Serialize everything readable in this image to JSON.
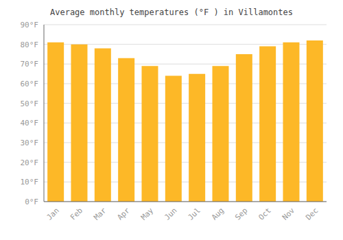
{
  "chart_data": {
    "type": "bar",
    "title": "Average monthly temperatures (°F ) in Villamontes",
    "categories": [
      "Jan",
      "Feb",
      "Mar",
      "Apr",
      "May",
      "Jun",
      "Jul",
      "Aug",
      "Sep",
      "Oct",
      "Nov",
      "Dec"
    ],
    "values": [
      81,
      80,
      78,
      73,
      69,
      64,
      65,
      69,
      75,
      79,
      81,
      82
    ],
    "color": "#FDB827",
    "ylim": [
      0,
      90
    ],
    "yticks": [
      {
        "value": 0,
        "label": "0°F"
      },
      {
        "value": 10,
        "label": "10°F"
      },
      {
        "value": 20,
        "label": "20°F"
      },
      {
        "value": 30,
        "label": "30°F"
      },
      {
        "value": 40,
        "label": "40°F"
      },
      {
        "value": 50,
        "label": "50°F"
      },
      {
        "value": 60,
        "label": "60°F"
      },
      {
        "value": 70,
        "label": "70°F"
      },
      {
        "value": 80,
        "label": "80°F"
      },
      {
        "value": 90,
        "label": "90°F"
      }
    ],
    "grid": true
  }
}
